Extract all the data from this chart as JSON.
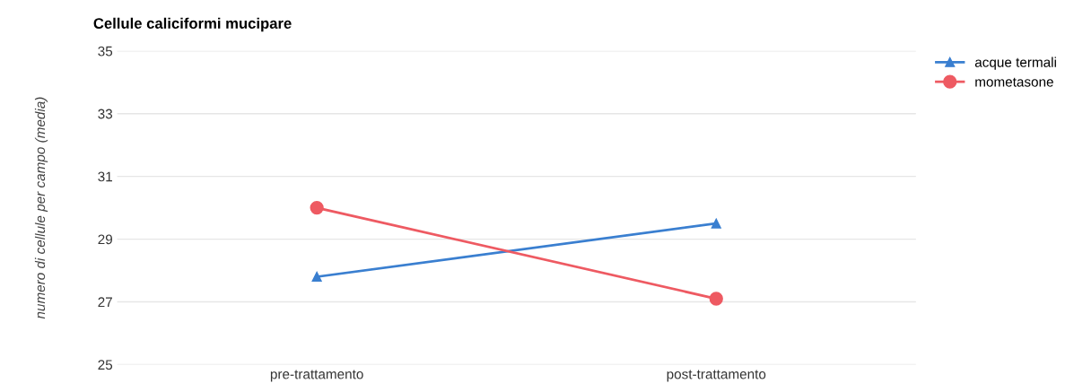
{
  "chart_data": {
    "type": "line",
    "title": "Cellule caliciformi mucipare",
    "ylabel": "numero di cellule per campo (media)",
    "categories": [
      "pre-trattamento",
      "post-trattamento"
    ],
    "series": [
      {
        "name": "acque termali",
        "color": "#3a7fd0",
        "marker": "triangle",
        "values": [
          27.8,
          29.5
        ]
      },
      {
        "name": "mometasone",
        "color": "#ee5a62",
        "marker": "circle",
        "values": [
          30.0,
          27.1
        ]
      }
    ],
    "ylim": [
      25,
      35
    ],
    "yticks": [
      25,
      27,
      29,
      31,
      33,
      35
    ],
    "grid": "y",
    "legend": "top right"
  }
}
